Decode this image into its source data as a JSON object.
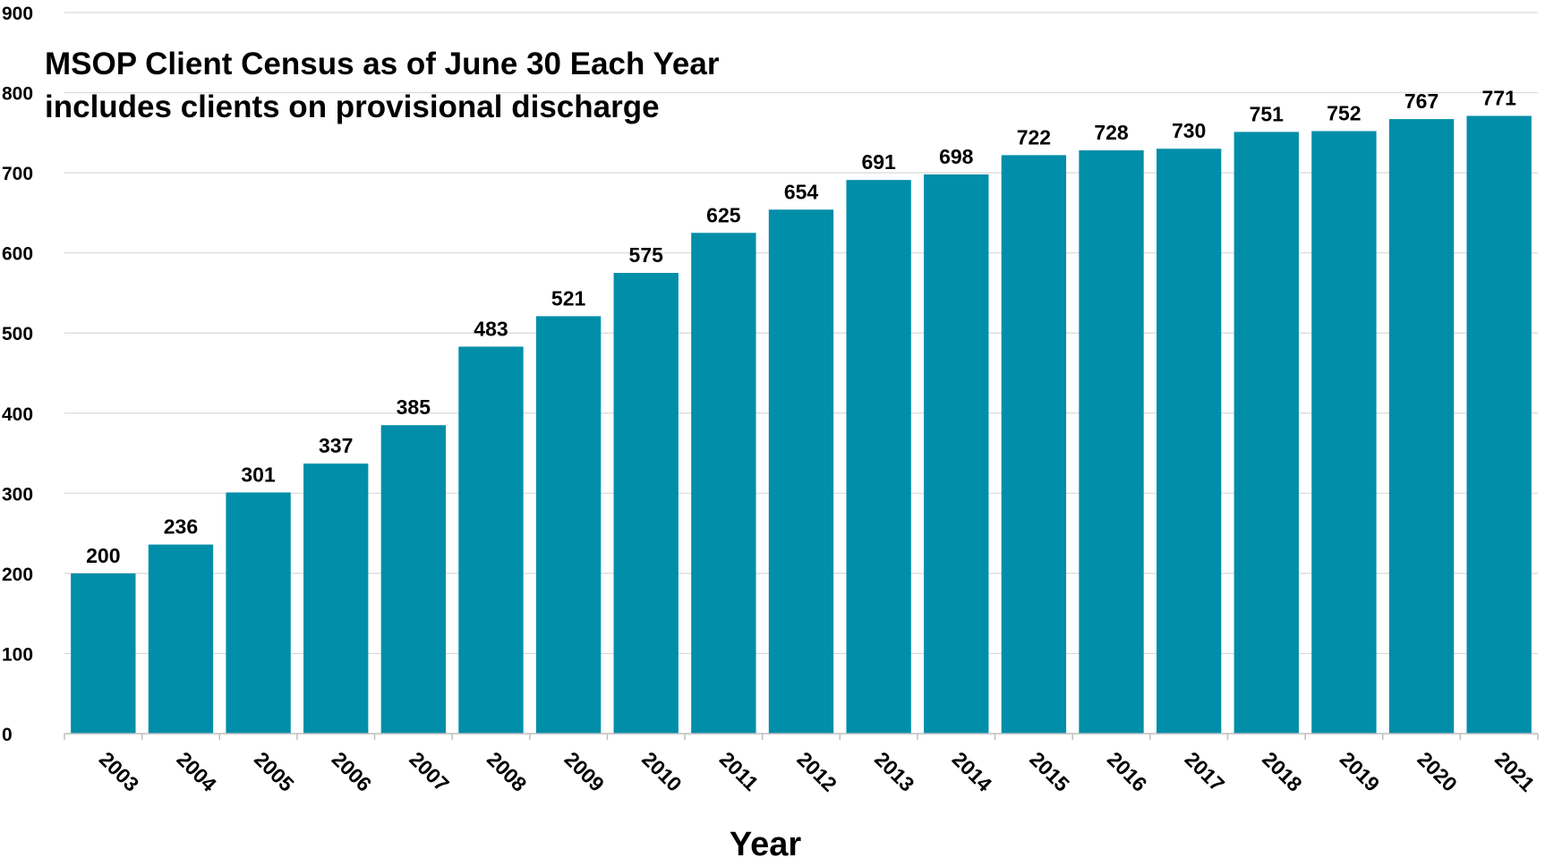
{
  "chart_data": {
    "type": "bar",
    "title": "MSOP Client Census as of June 30 Each Year",
    "subtitle": "includes clients on provisional discharge",
    "xlabel": "Year",
    "ylabel": "",
    "categories": [
      "2003",
      "2004",
      "2005",
      "2006",
      "2007",
      "2008",
      "2009",
      "2010",
      "2011",
      "2012",
      "2013",
      "2014",
      "2015",
      "2016",
      "2017",
      "2018",
      "2019",
      "2020",
      "2021"
    ],
    "values": [
      200,
      236,
      301,
      337,
      385,
      483,
      521,
      575,
      625,
      654,
      691,
      698,
      722,
      728,
      730,
      751,
      752,
      767,
      771
    ],
    "ylim": [
      0,
      900
    ],
    "yticks": [
      "0",
      "100",
      "200",
      "300",
      "400",
      "500",
      "600",
      "700",
      "800",
      "900"
    ],
    "grid": true,
    "legend": "none",
    "colors": {
      "bar": "#008ea9",
      "grid": "#d9d9d9",
      "axis": "#bfbfbf",
      "text": "#000000"
    }
  }
}
